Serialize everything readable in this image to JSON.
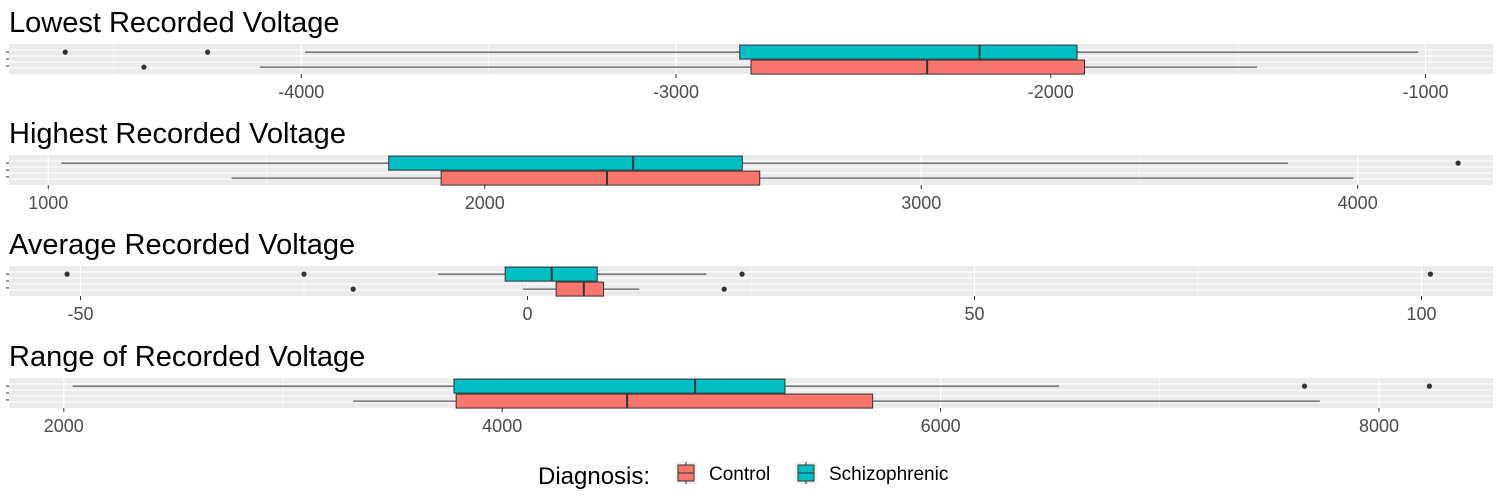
{
  "colors": {
    "control": "#F8766D",
    "schizophrenic": "#00BFC4",
    "panel_background": "#EBEBEB",
    "grid": "#FFFFFF",
    "outline": "#333333"
  },
  "legend": {
    "title": "Diagnosis:",
    "items": [
      {
        "label": "Control",
        "color": "#F8766D"
      },
      {
        "label": "Schizophrenic",
        "color": "#00BFC4"
      }
    ],
    "placement": "bottom"
  },
  "chart_data": [
    {
      "type": "boxplot",
      "orientation": "horizontal",
      "title": "Lowest Recorded Voltage",
      "xlim": [
        -4780,
        -820
      ],
      "ticks": [
        -4000,
        -3000,
        -2000,
        -1000
      ],
      "tick_labels": [
        "-4000",
        "-3000",
        "-2000",
        "-1000"
      ],
      "grid": true,
      "series": [
        {
          "name": "Schizophrenic",
          "whisker_low": -3990,
          "q1": -2830,
          "median": -2190,
          "q3": -1930,
          "whisker_high": -1020,
          "outliers": [
            -4630,
            -4250
          ]
        },
        {
          "name": "Control",
          "whisker_low": -4110,
          "q1": -2800,
          "median": -2330,
          "q3": -1910,
          "whisker_high": -1450,
          "outliers": [
            -4420
          ]
        }
      ]
    },
    {
      "type": "boxplot",
      "orientation": "horizontal",
      "title": "Highest Recorded Voltage",
      "xlim": [
        910,
        4310
      ],
      "ticks": [
        1000,
        2000,
        3000,
        4000
      ],
      "tick_labels": [
        "1000",
        "2000",
        "3000",
        "4000"
      ],
      "grid": true,
      "series": [
        {
          "name": "Schizophrenic",
          "whisker_low": 1030,
          "q1": 1780,
          "median": 2340,
          "q3": 2590,
          "whisker_high": 3840,
          "outliers": [
            4230
          ]
        },
        {
          "name": "Control",
          "whisker_low": 1420,
          "q1": 1900,
          "median": 2280,
          "q3": 2630,
          "whisker_high": 3990,
          "outliers": []
        }
      ]
    },
    {
      "type": "boxplot",
      "orientation": "horizontal",
      "title": "Average Recorded Voltage",
      "xlim": [
        -58,
        108
      ],
      "ticks": [
        -50,
        0,
        50,
        100
      ],
      "tick_labels": [
        "-50",
        "0",
        "50",
        "100"
      ],
      "grid": true,
      "series": [
        {
          "name": "Schizophrenic",
          "whisker_low": -10,
          "q1": -2.5,
          "median": 2.7,
          "q3": 7.8,
          "whisker_high": 20,
          "outliers": [
            -51.5,
            -25,
            24,
            101
          ]
        },
        {
          "name": "Control",
          "whisker_low": -0.5,
          "q1": 3.2,
          "median": 6.3,
          "q3": 8.5,
          "whisker_high": 12.5,
          "outliers": [
            -19.5,
            22
          ]
        }
      ]
    },
    {
      "type": "boxplot",
      "orientation": "horizontal",
      "title": "Range of Recorded Voltage",
      "xlim": [
        1750,
        8520
      ],
      "ticks": [
        2000,
        4000,
        6000,
        8000
      ],
      "tick_labels": [
        "2000",
        "4000",
        "6000",
        "8000"
      ],
      "grid": true,
      "series": [
        {
          "name": "Schizophrenic",
          "whisker_low": 2040,
          "q1": 3780,
          "median": 4880,
          "q3": 5290,
          "whisker_high": 6540,
          "outliers": [
            7660,
            8230
          ]
        },
        {
          "name": "Control",
          "whisker_low": 3320,
          "q1": 3790,
          "median": 4570,
          "q3": 5690,
          "whisker_high": 7730,
          "outliers": []
        }
      ]
    }
  ]
}
